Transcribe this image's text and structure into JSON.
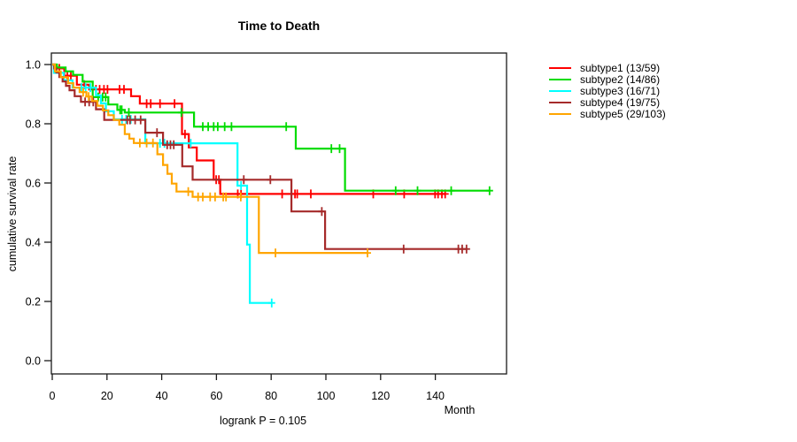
{
  "chart_data": {
    "type": "line",
    "variant": "kaplan_meier_step",
    "title": "Time to Death",
    "xlabel": "Month",
    "ylabel": "cumulative survival rate",
    "annotation": "logrank P = 0.105",
    "xlim": [
      0,
      166
    ],
    "ylim": [
      0,
      1
    ],
    "x_ticks": [
      0,
      20,
      40,
      60,
      80,
      100,
      120,
      140
    ],
    "y_ticks": [
      0.0,
      0.2,
      0.4,
      0.6,
      0.8,
      1.0
    ],
    "grid": false,
    "legend_position": "right-outside",
    "series": [
      {
        "name": "subtype1 (13/59)",
        "color": "#FF0000",
        "points": [
          [
            0,
            1.0
          ],
          [
            1.2,
            0.987
          ],
          [
            4.4,
            0.962
          ],
          [
            9,
            0.932
          ],
          [
            13.5,
            0.916
          ],
          [
            28.8,
            0.893
          ],
          [
            32,
            0.868
          ],
          [
            47.4,
            0.765
          ],
          [
            49.9,
            0.72
          ],
          [
            52.8,
            0.676
          ],
          [
            59,
            0.611
          ],
          [
            61.4,
            0.563
          ]
        ],
        "end_month": 143.6,
        "censors": [
          [
            2.6,
            0.987
          ],
          [
            5.5,
            0.962
          ],
          [
            6.8,
            0.962
          ],
          [
            11.7,
            0.932
          ],
          [
            16,
            0.916
          ],
          [
            17.3,
            0.916
          ],
          [
            18.9,
            0.916
          ],
          [
            20.2,
            0.916
          ],
          [
            24.6,
            0.916
          ],
          [
            26.2,
            0.916
          ],
          [
            34.5,
            0.868
          ],
          [
            36,
            0.868
          ],
          [
            39.4,
            0.868
          ],
          [
            44.7,
            0.868
          ],
          [
            48.5,
            0.765
          ],
          [
            59.9,
            0.611
          ],
          [
            60.9,
            0.611
          ],
          [
            67.8,
            0.563
          ],
          [
            69,
            0.563
          ],
          [
            84,
            0.563
          ],
          [
            88.7,
            0.563
          ],
          [
            89.5,
            0.563
          ],
          [
            94.5,
            0.563
          ],
          [
            117.3,
            0.563
          ],
          [
            128.6,
            0.563
          ],
          [
            139.9,
            0.563
          ],
          [
            141,
            0.563
          ],
          [
            142.4,
            0.563
          ],
          [
            143.6,
            0.563
          ]
        ]
      },
      {
        "name": "subtype2 (14/86)",
        "color": "#00DC00",
        "points": [
          [
            0,
            1.0
          ],
          [
            1.7,
            0.99
          ],
          [
            4.9,
            0.977
          ],
          [
            7.6,
            0.965
          ],
          [
            11.1,
            0.942
          ],
          [
            14.8,
            0.89
          ],
          [
            20.5,
            0.865
          ],
          [
            23.8,
            0.847
          ],
          [
            26.5,
            0.838
          ],
          [
            51.8,
            0.79
          ],
          [
            89,
            0.716
          ],
          [
            107,
            0.574
          ]
        ],
        "end_month": 159.8,
        "censors": [
          [
            16.8,
            0.89
          ],
          [
            18.4,
            0.89
          ],
          [
            19.5,
            0.89
          ],
          [
            24.8,
            0.847
          ],
          [
            25.4,
            0.847
          ],
          [
            28,
            0.838
          ],
          [
            47.2,
            0.838
          ],
          [
            55,
            0.79
          ],
          [
            57,
            0.79
          ],
          [
            59,
            0.79
          ],
          [
            60.5,
            0.79
          ],
          [
            63,
            0.79
          ],
          [
            65.5,
            0.79
          ],
          [
            85.5,
            0.79
          ],
          [
            102,
            0.716
          ],
          [
            105,
            0.716
          ],
          [
            125.5,
            0.574
          ],
          [
            133.5,
            0.574
          ],
          [
            145.8,
            0.574
          ],
          [
            159.8,
            0.574
          ]
        ]
      },
      {
        "name": "subtype3 (16/71)",
        "color": "#00FFFF",
        "points": [
          [
            0,
            1.0
          ],
          [
            0.6,
            0.972
          ],
          [
            4.2,
            0.947
          ],
          [
            7.4,
            0.922
          ],
          [
            16,
            0.896
          ],
          [
            17.8,
            0.869
          ],
          [
            19.6,
            0.842
          ],
          [
            22.5,
            0.815
          ],
          [
            34,
            0.734
          ],
          [
            67.7,
            0.591
          ],
          [
            71.2,
            0.392
          ],
          [
            72.2,
            0.195
          ]
        ],
        "end_month": 80.2,
        "censors": [
          [
            10.6,
            0.922
          ],
          [
            12.2,
            0.922
          ],
          [
            13.9,
            0.922
          ],
          [
            25.5,
            0.815
          ],
          [
            27,
            0.815
          ],
          [
            28.7,
            0.815
          ],
          [
            39.4,
            0.734
          ],
          [
            41,
            0.734
          ],
          [
            50.6,
            0.734
          ],
          [
            69,
            0.591
          ],
          [
            80.2,
            0.195
          ]
        ]
      },
      {
        "name": "subtype4 (19/75)",
        "color": "#A52A2A",
        "points": [
          [
            0,
            1.0
          ],
          [
            0.7,
            0.987
          ],
          [
            1.5,
            0.973
          ],
          [
            2.6,
            0.958
          ],
          [
            3.8,
            0.943
          ],
          [
            5,
            0.928
          ],
          [
            6.3,
            0.913
          ],
          [
            8.2,
            0.893
          ],
          [
            10.5,
            0.874
          ],
          [
            16,
            0.849
          ],
          [
            19,
            0.813
          ],
          [
            34,
            0.77
          ],
          [
            40.5,
            0.729
          ],
          [
            47.5,
            0.656
          ],
          [
            51.3,
            0.611
          ],
          [
            87.4,
            0.504
          ],
          [
            99.7,
            0.377
          ]
        ],
        "end_month": 151.4,
        "censors": [
          [
            12,
            0.874
          ],
          [
            13.5,
            0.874
          ],
          [
            15,
            0.874
          ],
          [
            27.4,
            0.813
          ],
          [
            28.4,
            0.813
          ],
          [
            30.3,
            0.813
          ],
          [
            32.3,
            0.813
          ],
          [
            38.3,
            0.77
          ],
          [
            42,
            0.729
          ],
          [
            43.2,
            0.729
          ],
          [
            44.4,
            0.729
          ],
          [
            70,
            0.611
          ],
          [
            79.7,
            0.611
          ],
          [
            98.5,
            0.504
          ],
          [
            128.4,
            0.377
          ],
          [
            148.4,
            0.377
          ],
          [
            149.8,
            0.377
          ],
          [
            151.4,
            0.377
          ]
        ]
      },
      {
        "name": "subtype5 (29/103)",
        "color": "#FFA500",
        "points": [
          [
            0,
            1.0
          ],
          [
            1,
            0.977
          ],
          [
            3.1,
            0.957
          ],
          [
            5.8,
            0.937
          ],
          [
            7.7,
            0.922
          ],
          [
            10,
            0.907
          ],
          [
            12.5,
            0.892
          ],
          [
            14.5,
            0.877
          ],
          [
            16.5,
            0.861
          ],
          [
            18.5,
            0.845
          ],
          [
            20.5,
            0.829
          ],
          [
            22.5,
            0.813
          ],
          [
            24.5,
            0.797
          ],
          [
            26.5,
            0.765
          ],
          [
            28.2,
            0.75
          ],
          [
            29.8,
            0.735
          ],
          [
            38.4,
            0.697
          ],
          [
            40.5,
            0.661
          ],
          [
            42.1,
            0.631
          ],
          [
            43.7,
            0.598
          ],
          [
            45.4,
            0.571
          ],
          [
            51.3,
            0.553
          ],
          [
            75.5,
            0.364
          ]
        ],
        "end_month": 115.2,
        "censors": [
          [
            11.3,
            0.907
          ],
          [
            13.3,
            0.892
          ],
          [
            32,
            0.735
          ],
          [
            34.5,
            0.735
          ],
          [
            36.8,
            0.735
          ],
          [
            49.7,
            0.571
          ],
          [
            53.3,
            0.553
          ],
          [
            55,
            0.553
          ],
          [
            57.7,
            0.553
          ],
          [
            59.5,
            0.553
          ],
          [
            62.5,
            0.553
          ],
          [
            63.5,
            0.553
          ],
          [
            68.9,
            0.553
          ],
          [
            81.6,
            0.364
          ],
          [
            115.2,
            0.364
          ]
        ]
      }
    ]
  }
}
